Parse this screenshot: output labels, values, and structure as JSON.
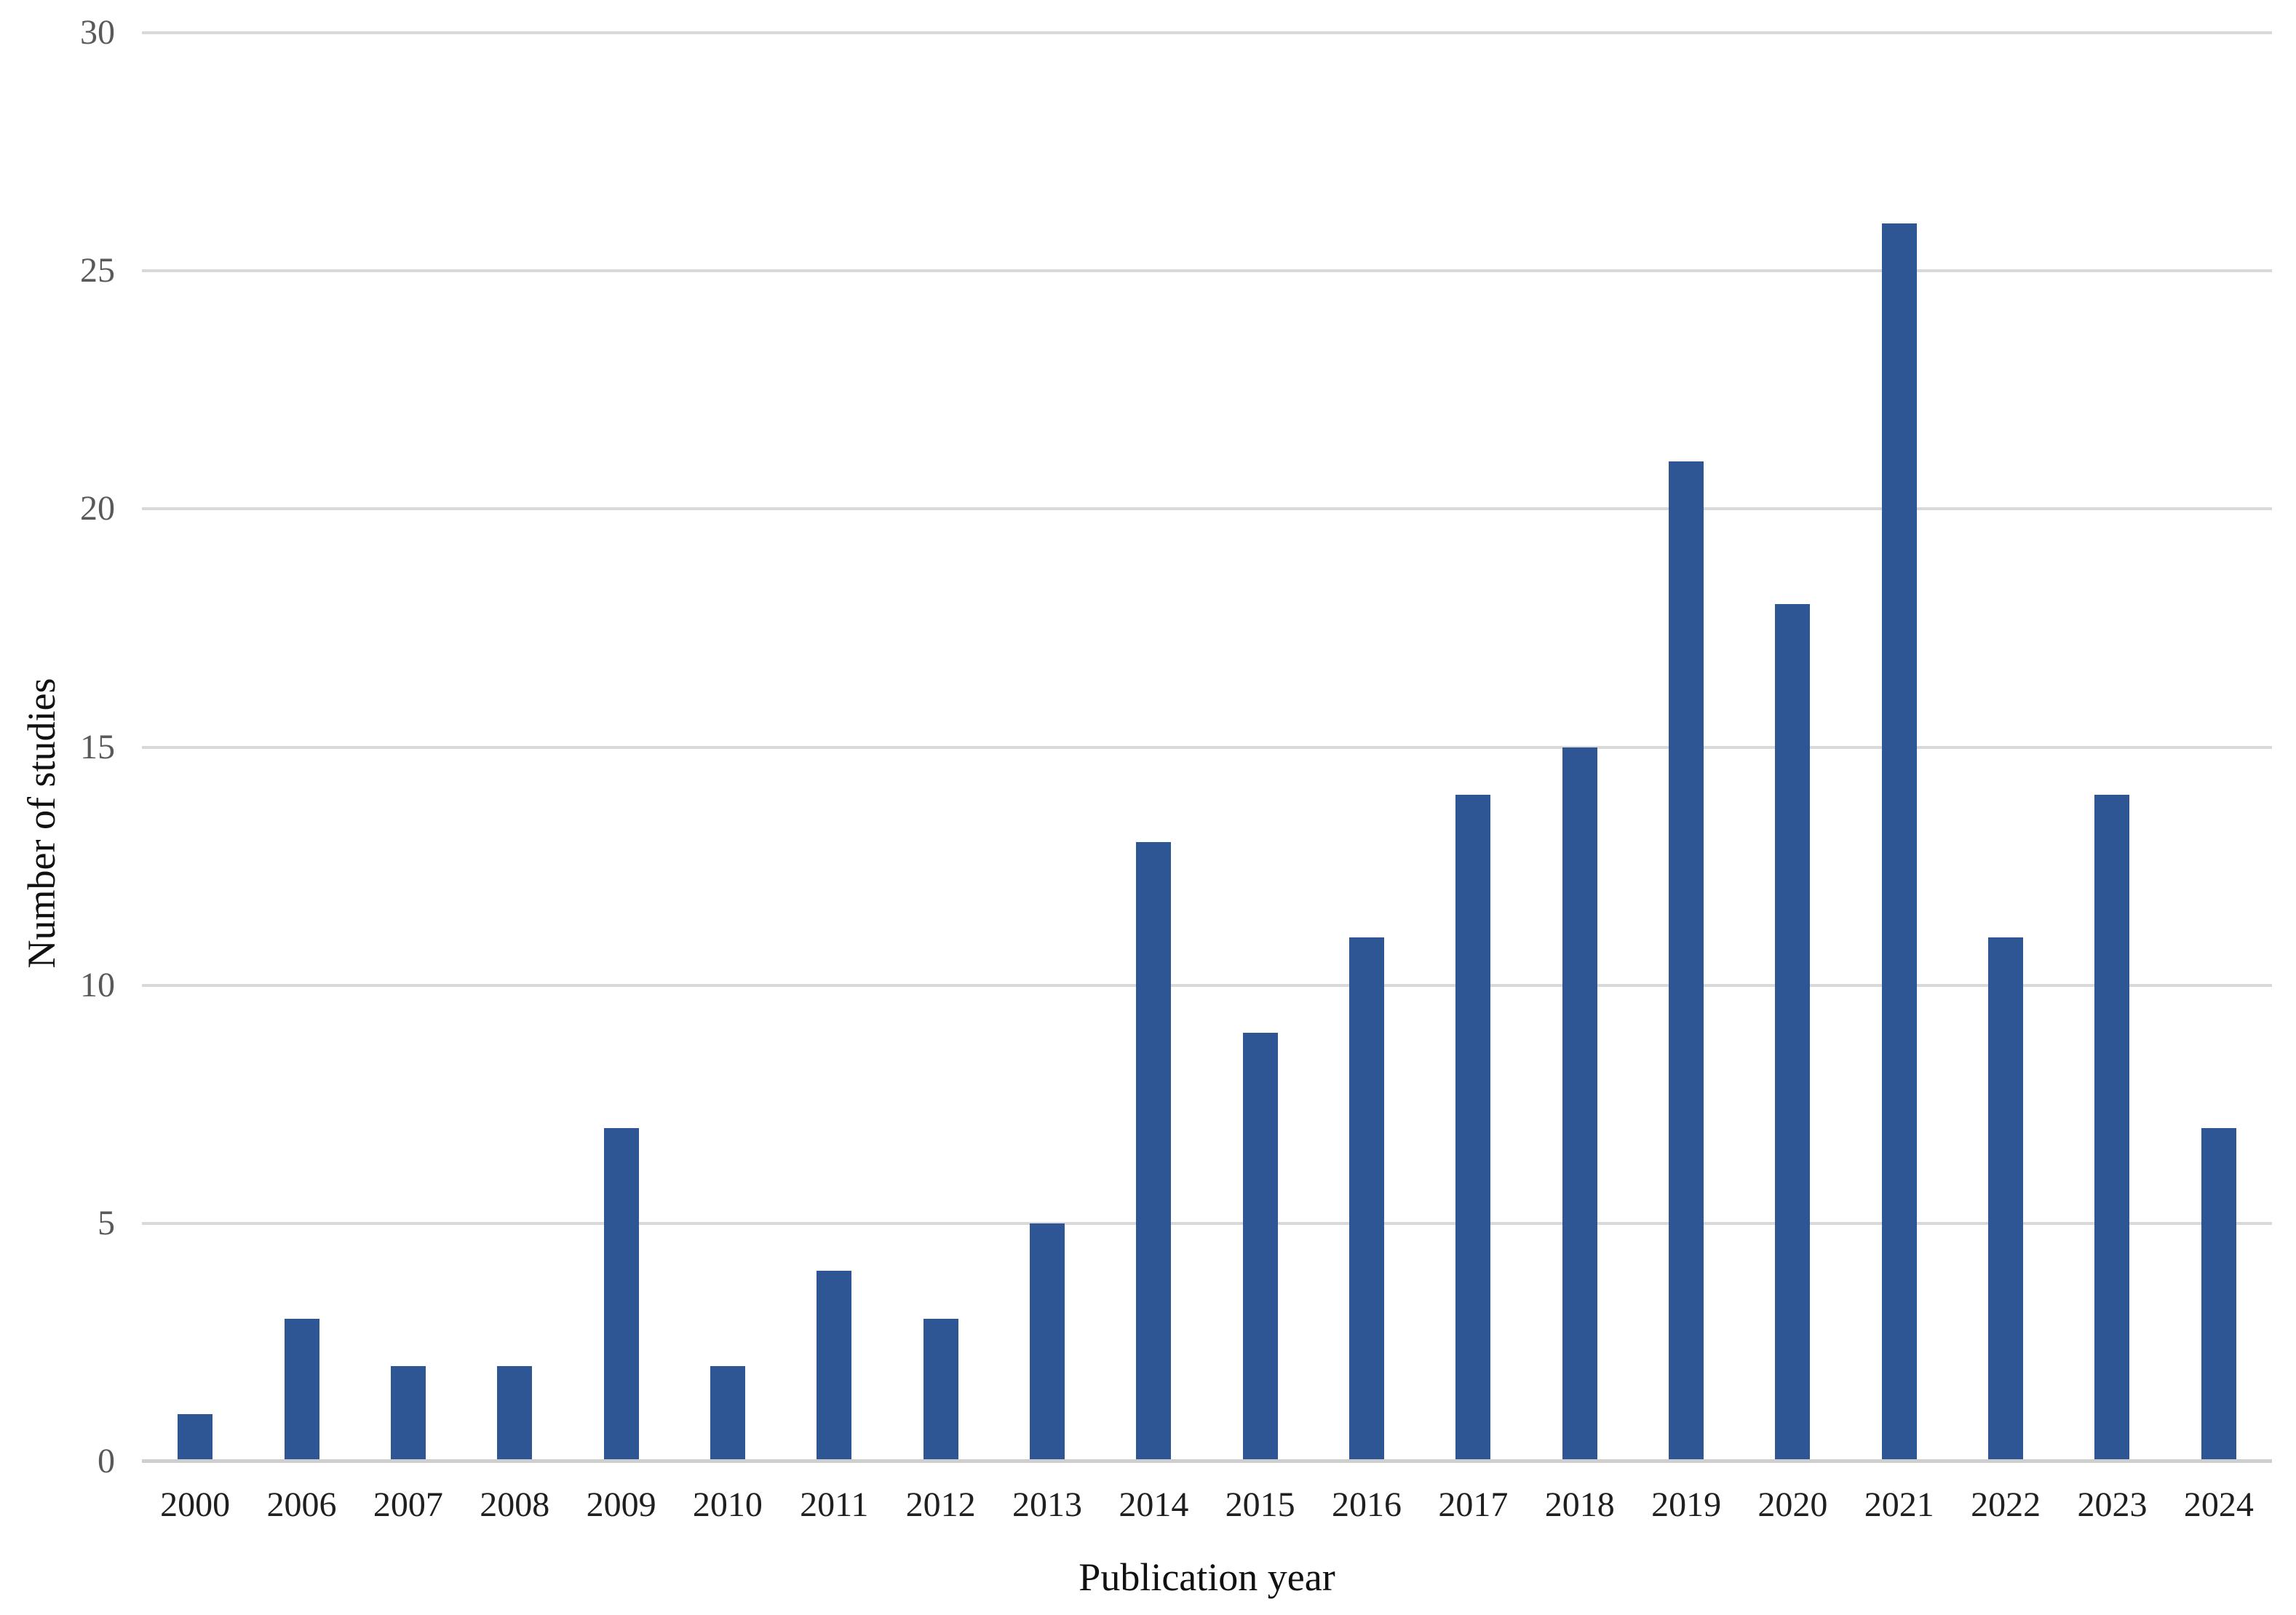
{
  "chart_data": {
    "type": "bar",
    "title": "",
    "xlabel": "Publication year",
    "ylabel": "Number of studies",
    "categories": [
      "2000",
      "2006",
      "2007",
      "2008",
      "2009",
      "2010",
      "2011",
      "2012",
      "2013",
      "2014",
      "2015",
      "2016",
      "2017",
      "2018",
      "2019",
      "2020",
      "2021",
      "2022",
      "2023",
      "2024"
    ],
    "values": [
      1,
      3,
      2,
      2,
      7,
      2,
      4,
      3,
      5,
      13,
      9,
      11,
      14,
      15,
      21,
      18,
      26,
      11,
      14,
      7
    ],
    "ylim": [
      0,
      30
    ],
    "yticks": [
      0,
      5,
      10,
      15,
      20,
      25,
      30
    ],
    "grid": true,
    "legend": "none",
    "colors": {
      "bar": "#2E5594",
      "gridline": "#D9D9D9",
      "axis_line": "#CFCECE",
      "x_tick_text": "#1F1F1F",
      "y_tick_text": "#595959",
      "title_text": "#111111",
      "background": "#FFFFFF"
    }
  }
}
